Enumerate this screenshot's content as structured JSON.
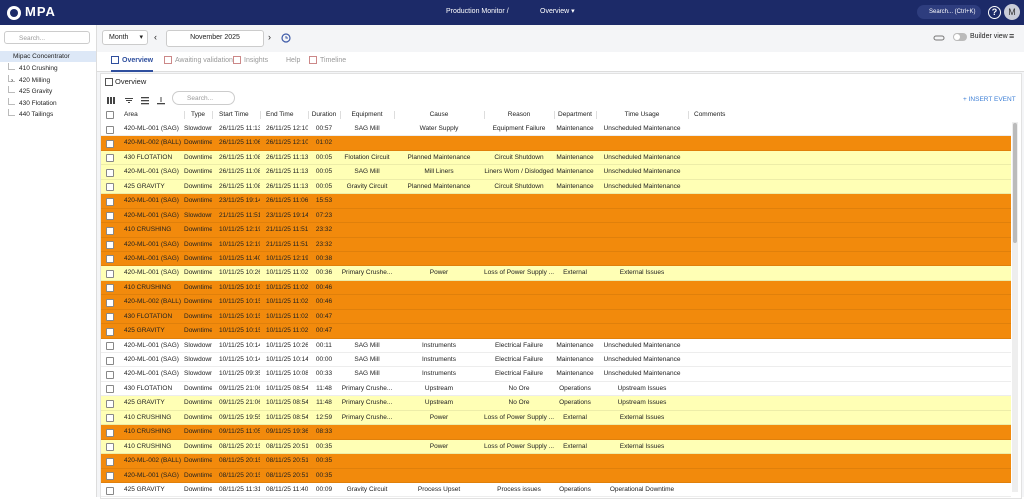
{
  "header": {
    "logo": "MPA",
    "breadcrumb": "Production Monitor /",
    "dashboard": "Overview",
    "search": "Search... (Ctrl+K)",
    "help": "?",
    "avatar": "M"
  },
  "sidebar": {
    "search": "Search...",
    "root": "Mipac Concentrator",
    "children": [
      "410 Crushing",
      "420 Milling",
      "425 Gravity",
      "430 Flotation",
      "440 Tailings"
    ]
  },
  "toolbar": {
    "period": "Month",
    "date": "November 2025",
    "builder": "Builder view"
  },
  "tabs": [
    "Overview",
    "Awaiting validation",
    "Insights",
    "Help",
    "Timeline"
  ],
  "panel": {
    "title": "Overview",
    "search": "Search...",
    "insert": "INSERT EVENT"
  },
  "table": {
    "columns": [
      "Area",
      "Type",
      "Start Time",
      "End Time",
      "Duration",
      "Equipment",
      "Cause",
      "Reason",
      "Department",
      "Time Usage",
      "Comments"
    ],
    "rows": [
      {
        "color": "#ffffff",
        "cells": [
          "420-ML-001 (SAG)",
          "Slowdown",
          "26/11/25 11:13",
          "26/11/25 12:10",
          "00:57",
          "SAG Mill",
          "Water Supply",
          "Equipment Failure",
          "Maintenance",
          "Unscheduled Maintenance"
        ]
      },
      {
        "color": "#f28a0c",
        "cells": [
          "420-ML-002 (BALL)",
          "Downtime",
          "26/11/25 11:06",
          "26/11/25 12:10",
          "01:02",
          null,
          null,
          null,
          null,
          null
        ]
      },
      {
        "color": "#ffffb5",
        "cells": [
          "430 FLOTATION",
          "Downtime",
          "26/11/25 11:08",
          "26/11/25 11:13",
          "00:05",
          "Flotation Circuit",
          "Planned Maintenance",
          "Circuit Shutdown",
          "Maintenance",
          "Unscheduled Maintenance"
        ]
      },
      {
        "color": "#ffffb5",
        "cells": [
          "420-ML-001 (SAG)",
          "Downtime",
          "26/11/25 11:08",
          "26/11/25 11:13",
          "00:05",
          "SAG Mill",
          "Mill Liners",
          "Liners Worn / Dislodged",
          "Maintenance",
          "Unscheduled Maintenance"
        ]
      },
      {
        "color": "#ffffb5",
        "cells": [
          "425 GRAVITY",
          "Downtime",
          "26/11/25 11:08",
          "26/11/25 11:13",
          "00:05",
          "Gravity Circuit",
          "Planned Maintenance",
          "Circuit Shutdown",
          "Maintenance",
          "Unscheduled Maintenance"
        ]
      },
      {
        "color": "#f28a0c",
        "cells": [
          "420-ML-001 (SAG)",
          "Downtime",
          "23/11/25 19:14",
          "26/11/25 11:06",
          "15:53",
          null,
          null,
          null,
          null,
          null
        ]
      },
      {
        "color": "#f28a0c",
        "cells": [
          "420-ML-001 (SAG)",
          "Slowdown",
          "21/11/25 11:51",
          "23/11/25 19:14",
          "07:23",
          null,
          null,
          null,
          null,
          null
        ]
      },
      {
        "color": "#f28a0c",
        "cells": [
          "410 CRUSHING",
          "Downtime",
          "10/11/25 12:19",
          "21/11/25 11:51",
          "23:32",
          null,
          null,
          null,
          null,
          null
        ]
      },
      {
        "color": "#f28a0c",
        "cells": [
          "420-ML-001 (SAG)",
          "Downtime",
          "10/11/25 12:19",
          "21/11/25 11:51",
          "23:32",
          null,
          null,
          null,
          null,
          null
        ]
      },
      {
        "color": "#f28a0c",
        "cells": [
          "420-ML-001 (SAG)",
          "Downtime",
          "10/11/25 11:40",
          "10/11/25 12:19",
          "00:38",
          null,
          null,
          null,
          null,
          null
        ]
      },
      {
        "color": "#ffffb5",
        "cells": [
          "420-ML-001 (SAG)",
          "Downtime",
          "10/11/25 10:26",
          "10/11/25 11:02",
          "00:36",
          "Primary Crushe...",
          "Power",
          "Loss of Power Supply ...",
          "External",
          "External Issues"
        ]
      },
      {
        "color": "#f28a0c",
        "cells": [
          "410 CRUSHING",
          "Downtime",
          "10/11/25 10:15",
          "10/11/25 11:02",
          "00:46",
          null,
          null,
          null,
          null,
          null
        ]
      },
      {
        "color": "#f28a0c",
        "cells": [
          "420-ML-002 (BALL)",
          "Downtime",
          "10/11/25 10:15",
          "10/11/25 11:02",
          "00:46",
          null,
          null,
          null,
          null,
          null
        ]
      },
      {
        "color": "#f28a0c",
        "cells": [
          "430 FLOTATION",
          "Downtime",
          "10/11/25 10:15",
          "10/11/25 11:02",
          "00:47",
          null,
          null,
          null,
          null,
          null
        ]
      },
      {
        "color": "#f28a0c",
        "cells": [
          "425 GRAVITY",
          "Downtime",
          "10/11/25 10:15",
          "10/11/25 11:02",
          "00:47",
          null,
          null,
          null,
          null,
          null
        ]
      },
      {
        "color": "#ffffff",
        "cells": [
          "420-ML-001 (SAG)",
          "Slowdown",
          "10/11/25 10:14",
          "10/11/25 10:26",
          "00:11",
          "SAG Mill",
          "Instruments",
          "Electrical Failure",
          "Maintenance",
          "Unscheduled Maintenance"
        ]
      },
      {
        "color": "#ffffff",
        "cells": [
          "420-ML-001 (SAG)",
          "Slowdown",
          "10/11/25 10:14",
          "10/11/25 10:14",
          "00:00",
          "SAG Mill",
          "Instruments",
          "Electrical Failure",
          "Maintenance",
          "Unscheduled Maintenance"
        ]
      },
      {
        "color": "#ffffff",
        "cells": [
          "420-ML-001 (SAG)",
          "Slowdown",
          "10/11/25 09:35",
          "10/11/25 10:08",
          "00:33",
          "SAG Mill",
          "Instruments",
          "Electrical Failure",
          "Maintenance",
          "Unscheduled Maintenance"
        ]
      },
      {
        "color": "#ffffff",
        "cells": [
          "430 FLOTATION",
          "Downtime",
          "09/11/25 21:06",
          "10/11/25 08:54",
          "11:48",
          "Primary Crushe...",
          "Upstream",
          "No Ore",
          "Operations",
          "Upstream Issues"
        ]
      },
      {
        "color": "#ffffb5",
        "cells": [
          "425 GRAVITY",
          "Downtime",
          "09/11/25 21:06",
          "10/11/25 08:54",
          "11:48",
          "Primary Crushe...",
          "Upstream",
          "No Ore",
          "Operations",
          "Upstream Issues"
        ]
      },
      {
        "color": "#ffffb5",
        "cells": [
          "410 CRUSHING",
          "Downtime",
          "09/11/25 19:55",
          "10/11/25 08:54",
          "12:59",
          "Primary Crushe...",
          "Power",
          "Loss of Power Supply ...",
          "External",
          "External Issues"
        ]
      },
      {
        "color": "#f28a0c",
        "cells": [
          "410 CRUSHING",
          "Downtime",
          "09/11/25 11:05",
          "09/11/25 19:36",
          "08:33",
          null,
          null,
          null,
          null,
          null
        ]
      },
      {
        "color": "#ffffb5",
        "cells": [
          "410 CRUSHING",
          "Downtime",
          "08/11/25 20:15",
          "08/11/25 20:51",
          "00:35",
          null,
          "Power",
          "Loss of Power Supply ...",
          "External",
          "External Issues"
        ]
      },
      {
        "color": "#f28a0c",
        "cells": [
          "420-ML-002 (BALL)",
          "Downtime",
          "08/11/25 20:15",
          "08/11/25 20:51",
          "00:35",
          null,
          null,
          null,
          null,
          null
        ]
      },
      {
        "color": "#f28a0c",
        "cells": [
          "420-ML-001 (SAG)",
          "Downtime",
          "08/11/25 20:15",
          "08/11/25 20:51",
          "00:35",
          null,
          null,
          null,
          null,
          null
        ]
      },
      {
        "color": "#ffffff",
        "cells": [
          "425 GRAVITY",
          "Downtime",
          "08/11/25 11:31",
          "08/11/25 11:40",
          "00:09",
          "Gravity Circuit",
          "Process Upset",
          "Process issues",
          "Operations",
          "Operational Downtime"
        ]
      }
    ]
  }
}
